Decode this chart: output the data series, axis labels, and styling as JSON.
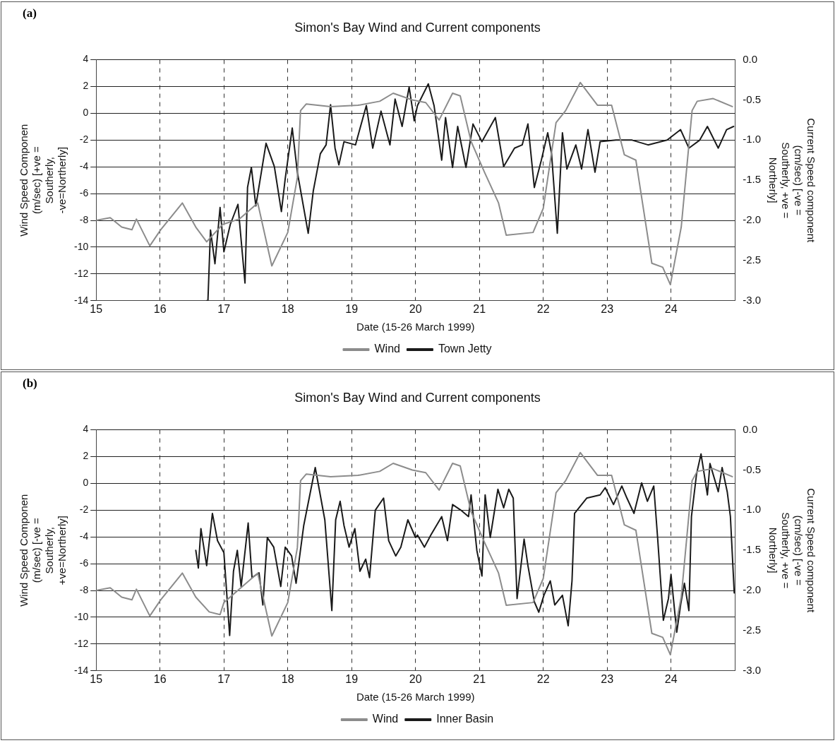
{
  "chart_data": [
    {
      "type": "line",
      "title": "Simon's Bay Wind and Current components",
      "xlabel": "Date (15-26 March 1999)",
      "ylabel": "Wind Speed Componen (m/sec) [+ve = Southerly, -ve=Northerly]",
      "y2label": "Current Speed component (cm/sec) [-ve = Southerly, +ve = Northerly]",
      "annotations": [
        "(a)"
      ],
      "xlim": [
        15,
        25
      ],
      "xticks": [
        15,
        16,
        17,
        18,
        19,
        20,
        21,
        22,
        23,
        24
      ],
      "ylim": [
        -14,
        4
      ],
      "yticks": [
        -14,
        -12,
        -10,
        -8,
        -6,
        -4,
        -2,
        0,
        2,
        4
      ],
      "y2lim": [
        -3,
        0
      ],
      "y2ticks": [
        {
          "value": -3,
          "label": "-3.0"
        },
        -2.5,
        {
          "value": -2,
          "label": "-2.0"
        },
        -1.5,
        {
          "value": -1,
          "label": "-1.0"
        },
        -0.5,
        {
          "value": 0,
          "label": "0.0"
        }
      ],
      "grid": true,
      "legend": "bottom",
      "marker": "none",
      "line_style": "solid",
      "series": [
        {
          "name": "Wind",
          "color": "#8c8c8c",
          "x": [
            15.0,
            15.22,
            15.4,
            15.56,
            15.63,
            15.84,
            16.01,
            16.35,
            16.56,
            16.73,
            16.98,
            17.24,
            17.53,
            17.75,
            18.0,
            18.15,
            18.2,
            18.29,
            18.67,
            19.1,
            19.44,
            19.65,
            19.95,
            20.16,
            20.37,
            20.58,
            20.7,
            20.87,
            21.08,
            21.3,
            21.42,
            21.84,
            22.0,
            22.2,
            22.35,
            22.58,
            22.85,
            23.07,
            23.27,
            23.45,
            23.7,
            23.87,
            23.99,
            24.16,
            24.33,
            24.41,
            24.66,
            24.96
          ],
          "values": [
            -8,
            -7.8,
            -8.5,
            -8.7,
            -7.9,
            -9.9,
            -8.7,
            -6.7,
            -8.5,
            -9.6,
            -8.3,
            -7.9,
            -6.7,
            -11.4,
            -8.9,
            -4.8,
            0.2,
            0.7,
            0.5,
            0.6,
            0.9,
            1.5,
            1.0,
            0.8,
            -0.5,
            1.5,
            1.3,
            -2.1,
            -4.4,
            -6.7,
            -9.1,
            -8.9,
            -7.1,
            -0.7,
            0.2,
            2.3,
            0.6,
            0.6,
            -3.1,
            -3.5,
            -11.2,
            -11.5,
            -12.8,
            -8.5,
            0.2,
            0.9,
            1.1,
            0.5
          ]
        },
        {
          "name": "Town Jetty",
          "color": "#1a1a1a",
          "axis": "y2",
          "x": [
            16.73,
            16.75,
            16.79,
            16.86,
            16.94,
            17.0,
            17.1,
            17.22,
            17.33,
            17.37,
            17.43,
            17.5,
            17.66,
            17.79,
            17.9,
            17.96,
            18.07,
            18.15,
            18.32,
            18.4,
            18.51,
            18.6,
            18.67,
            18.74,
            18.8,
            18.88,
            19.06,
            19.23,
            19.33,
            19.46,
            19.6,
            19.68,
            19.79,
            19.9,
            19.98,
            20.03,
            20.2,
            20.29,
            20.41,
            20.47,
            20.58,
            20.66,
            20.79,
            20.9,
            21.04,
            21.25,
            21.38,
            21.55,
            21.67,
            21.76,
            21.86,
            21.97,
            22.07,
            22.13,
            22.22,
            22.3,
            22.37,
            22.51,
            22.6,
            22.7,
            22.81,
            22.89,
            23.14,
            23.39,
            23.64,
            23.94,
            24.15,
            24.28,
            24.45,
            24.57,
            24.74,
            24.87,
            24.98
          ],
          "values": [
            -3.0,
            -3.0,
            -2.12,
            -2.54,
            -1.84,
            -2.39,
            -2.05,
            -1.8,
            -2.78,
            -1.59,
            -1.34,
            -1.82,
            -1.04,
            -1.33,
            -1.89,
            -1.48,
            -0.85,
            -1.4,
            -2.16,
            -1.63,
            -1.17,
            -1.06,
            -0.56,
            -1.1,
            -1.31,
            -1.02,
            -1.06,
            -0.57,
            -1.1,
            -0.64,
            -1.06,
            -0.49,
            -0.83,
            -0.34,
            -0.76,
            -0.57,
            -0.3,
            -0.57,
            -1.25,
            -0.72,
            -1.34,
            -0.83,
            -1.34,
            -0.8,
            -1.02,
            -0.72,
            -1.33,
            -1.1,
            -1.06,
            -0.8,
            -1.59,
            -1.25,
            -0.91,
            -1.17,
            -2.16,
            -0.91,
            -1.36,
            -1.06,
            -1.36,
            -0.87,
            -1.4,
            -1.02,
            -1.0,
            -1.0,
            -1.06,
            -1.0,
            -0.87,
            -1.1,
            -1.0,
            -0.83,
            -1.1,
            -0.87,
            -0.83
          ]
        }
      ]
    },
    {
      "type": "line",
      "title": "Simon's Bay Wind and Current components",
      "xlabel": "Date (15-26 March 1999)",
      "ylabel": "Wind Speed Componen (m/sec) [-ve = Southerly, +ve=Northerly]",
      "y2label": "Current Speed component (cm/sec) [-ve = Southerly, +ve = Northerly]",
      "annotations": [
        "(b)"
      ],
      "xlim": [
        15,
        25
      ],
      "xticks": [
        15,
        16,
        17,
        18,
        19,
        20,
        21,
        22,
        23,
        24
      ],
      "ylim": [
        -14,
        4
      ],
      "yticks": [
        -14,
        -12,
        -10,
        -8,
        -6,
        -4,
        -2,
        0,
        2,
        4
      ],
      "y2lim": [
        -3,
        0
      ],
      "y2ticks": [
        {
          "value": -3,
          "label": "-3.0"
        },
        -2.5,
        {
          "value": -2,
          "label": "-2.0"
        },
        -1.5,
        {
          "value": -1,
          "label": "-1.0"
        },
        -0.5,
        {
          "value": 0,
          "label": "0.0"
        }
      ],
      "grid": true,
      "legend": "bottom",
      "marker": "none",
      "line_style": "solid",
      "series": [
        {
          "name": "Wind",
          "color": "#8c8c8c",
          "x": [
            15.0,
            15.22,
            15.4,
            15.56,
            15.63,
            15.84,
            16.01,
            16.35,
            16.56,
            16.77,
            16.94,
            17.0,
            17.24,
            17.53,
            17.75,
            18.0,
            18.15,
            18.2,
            18.29,
            18.67,
            19.1,
            19.44,
            19.65,
            19.95,
            20.16,
            20.37,
            20.58,
            20.7,
            20.87,
            21.08,
            21.3,
            21.42,
            21.84,
            22.0,
            22.2,
            22.35,
            22.58,
            22.85,
            23.07,
            23.27,
            23.45,
            23.7,
            23.87,
            23.99,
            24.16,
            24.33,
            24.41,
            24.66,
            24.96
          ],
          "values": [
            -8,
            -7.8,
            -8.5,
            -8.7,
            -7.9,
            -9.9,
            -8.7,
            -6.7,
            -8.5,
            -9.6,
            -9.8,
            -8.9,
            -7.9,
            -6.7,
            -11.4,
            -8.9,
            -4.8,
            0.2,
            0.7,
            0.5,
            0.6,
            0.9,
            1.5,
            1.0,
            0.8,
            -0.5,
            1.5,
            1.3,
            -2.1,
            -4.4,
            -6.7,
            -9.1,
            -8.9,
            -7.1,
            -0.7,
            0.2,
            2.3,
            0.6,
            0.6,
            -3.1,
            -3.5,
            -11.2,
            -11.5,
            -12.8,
            -8.5,
            0.2,
            0.9,
            1.1,
            0.5
          ]
        },
        {
          "name": "Inner Basin",
          "color": "#1a1a1a",
          "axis": "y2",
          "x": [
            16.56,
            16.6,
            16.64,
            16.73,
            16.82,
            16.9,
            17.0,
            17.09,
            17.15,
            17.21,
            17.27,
            17.38,
            17.44,
            17.55,
            17.61,
            17.68,
            17.78,
            17.89,
            17.96,
            18.06,
            18.13,
            18.25,
            18.43,
            18.58,
            18.69,
            18.75,
            18.82,
            18.88,
            18.96,
            19.05,
            19.13,
            19.22,
            19.28,
            19.37,
            19.5,
            19.58,
            19.69,
            19.77,
            19.88,
            20.0,
            20.03,
            20.14,
            20.24,
            20.41,
            20.5,
            20.58,
            20.71,
            20.83,
            20.87,
            20.96,
            21.04,
            21.09,
            21.17,
            21.29,
            21.38,
            21.46,
            21.53,
            21.59,
            21.7,
            21.76,
            21.86,
            21.93,
            22.01,
            22.11,
            22.18,
            22.3,
            22.39,
            22.45,
            22.49,
            22.68,
            22.89,
            22.97,
            23.1,
            23.23,
            23.31,
            23.42,
            23.54,
            23.63,
            23.73,
            23.79,
            23.88,
            23.96,
            24.0,
            24.09,
            24.15,
            24.21,
            24.28,
            24.32,
            24.4,
            24.47,
            24.57,
            24.61,
            24.74,
            24.8,
            24.88,
            24.93,
            24.99
          ],
          "values": [
            -1.5,
            -1.72,
            -1.23,
            -1.69,
            -1.04,
            -1.38,
            -1.53,
            -2.56,
            -1.76,
            -1.5,
            -1.95,
            -1.16,
            -1.84,
            -1.78,
            -2.18,
            -1.34,
            -1.46,
            -1.95,
            -1.46,
            -1.57,
            -1.91,
            -1.19,
            -0.47,
            -1.12,
            -2.25,
            -1.12,
            -0.89,
            -1.19,
            -1.46,
            -1.23,
            -1.76,
            -1.61,
            -1.84,
            -1.0,
            -0.85,
            -1.38,
            -1.57,
            -1.46,
            -1.12,
            -1.34,
            -1.31,
            -1.46,
            -1.31,
            -1.08,
            -1.38,
            -0.93,
            -1.0,
            -1.08,
            -0.81,
            -1.5,
            -1.82,
            -0.81,
            -1.34,
            -0.74,
            -0.97,
            -0.74,
            -0.85,
            -2.1,
            -1.36,
            -1.69,
            -2.14,
            -2.27,
            -2.06,
            -1.88,
            -2.18,
            -2.06,
            -2.44,
            -1.88,
            -1.04,
            -0.85,
            -0.81,
            -0.72,
            -0.93,
            -0.7,
            -0.85,
            -1.04,
            -0.66,
            -0.89,
            -0.7,
            -1.34,
            -2.37,
            -2.1,
            -1.8,
            -2.52,
            -2.18,
            -1.91,
            -2.25,
            -1.08,
            -0.55,
            -0.3,
            -0.81,
            -0.42,
            -0.77,
            -0.47,
            -0.77,
            -1.08,
            -2.03
          ]
        }
      ]
    }
  ]
}
